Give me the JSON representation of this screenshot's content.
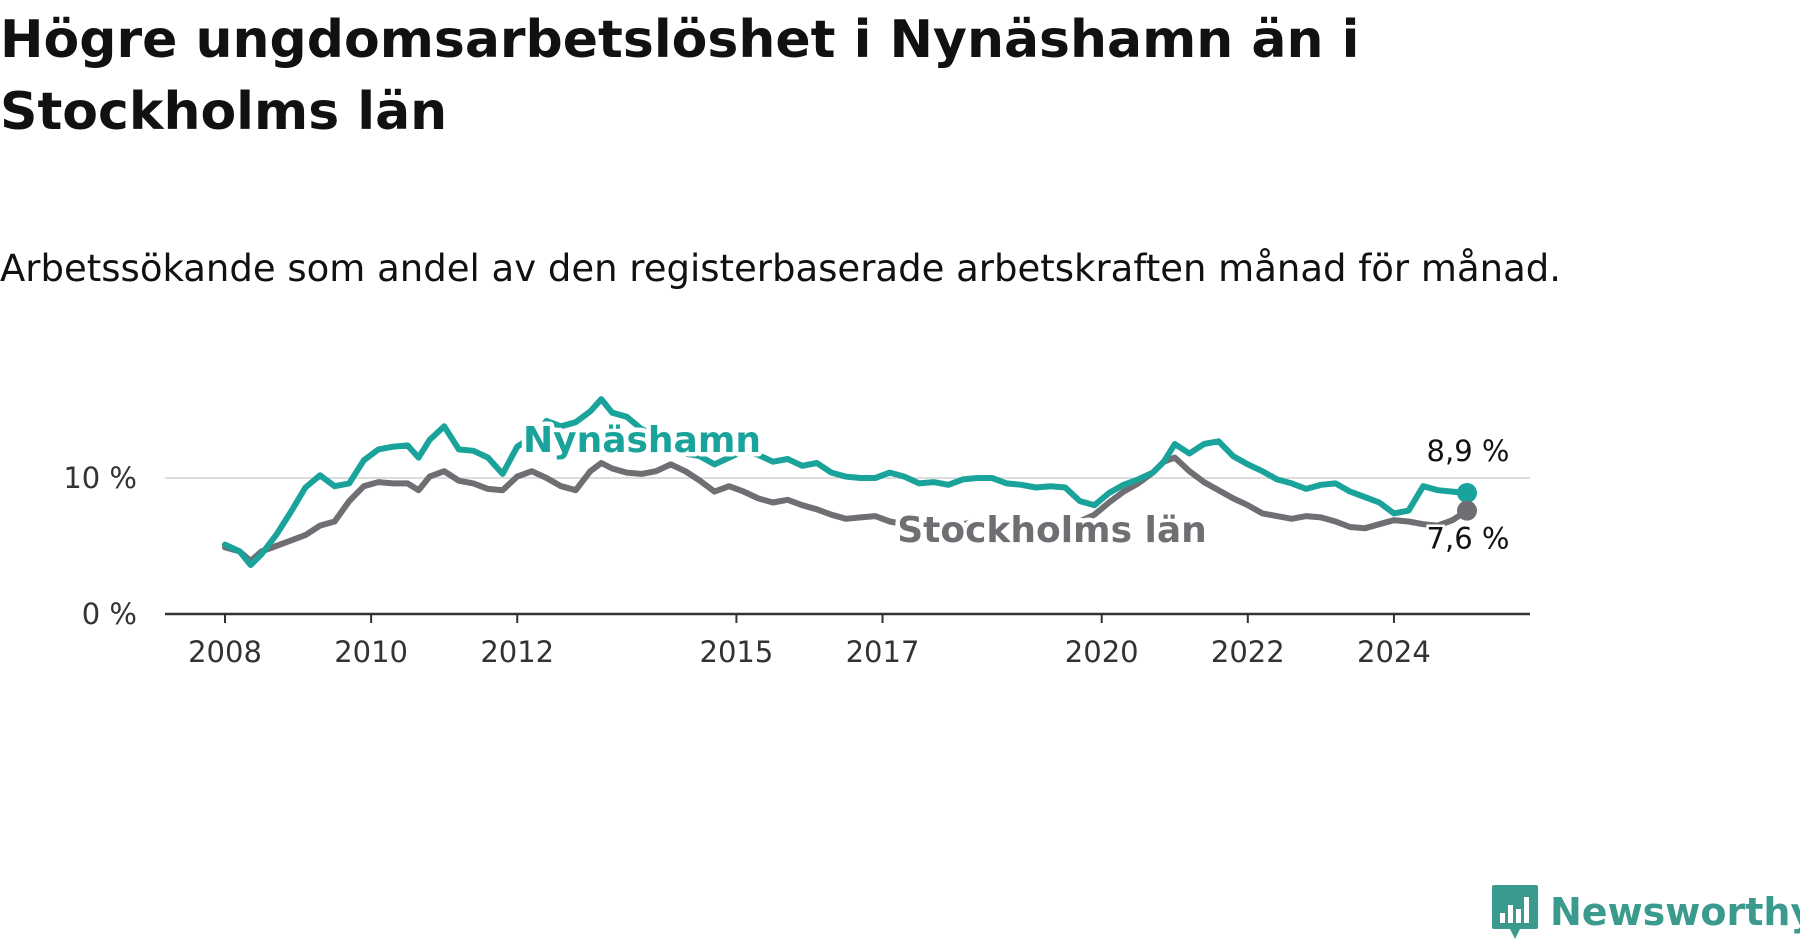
{
  "title": "Högre ungdomsarbetslöshet i Nynäshamn än i Stockholms län",
  "subtitle": "Arbetssökande som andel av den registerbaserade arbetskraften månad för månad.",
  "logo": {
    "text": "Newsworthy",
    "icon": "newsworthy-logo-icon",
    "color": "#3a9a8e"
  },
  "chart_data": {
    "type": "line",
    "title": "Högre ungdomsarbetslöshet i Nynäshamn än i Stockholms län",
    "xlabel": "",
    "ylabel": "",
    "xlim": [
      2008.0,
      2025.0
    ],
    "ylim": [
      0,
      18
    ],
    "grid": true,
    "x_ticks": [
      {
        "value": 2008,
        "label": "2008"
      },
      {
        "value": 2010,
        "label": "2010"
      },
      {
        "value": 2012,
        "label": "2012"
      },
      {
        "value": 2015,
        "label": "2015"
      },
      {
        "value": 2017,
        "label": "2017"
      },
      {
        "value": 2020,
        "label": "2020"
      },
      {
        "value": 2022,
        "label": "2022"
      },
      {
        "value": 2024,
        "label": "2024"
      }
    ],
    "y_ticks": [
      {
        "value": 0,
        "label": "0 %"
      },
      {
        "value": 10,
        "label": "10 %"
      }
    ],
    "series": [
      {
        "name": "Nynäshamn",
        "color": "#1aa39a",
        "end_label": "8,9 %",
        "points": [
          [
            2008.0,
            5.1
          ],
          [
            2008.2,
            4.6
          ],
          [
            2008.35,
            3.6
          ],
          [
            2008.5,
            4.4
          ],
          [
            2008.7,
            5.8
          ],
          [
            2008.9,
            7.5
          ],
          [
            2009.1,
            9.3
          ],
          [
            2009.3,
            10.2
          ],
          [
            2009.5,
            9.4
          ],
          [
            2009.7,
            9.6
          ],
          [
            2009.9,
            11.3
          ],
          [
            2010.1,
            12.1
          ],
          [
            2010.3,
            12.3
          ],
          [
            2010.5,
            12.4
          ],
          [
            2010.65,
            11.5
          ],
          [
            2010.8,
            12.8
          ],
          [
            2011.0,
            13.8
          ],
          [
            2011.2,
            12.1
          ],
          [
            2011.4,
            12.0
          ],
          [
            2011.6,
            11.5
          ],
          [
            2011.8,
            10.3
          ],
          [
            2012.0,
            12.3
          ],
          [
            2012.2,
            13.0
          ],
          [
            2012.4,
            14.2
          ],
          [
            2012.6,
            13.8
          ],
          [
            2012.8,
            14.1
          ],
          [
            2013.0,
            14.9
          ],
          [
            2013.15,
            15.8
          ],
          [
            2013.3,
            14.8
          ],
          [
            2013.5,
            14.5
          ],
          [
            2013.7,
            13.6
          ],
          [
            2013.9,
            13.1
          ],
          [
            2014.1,
            12.6
          ],
          [
            2014.3,
            11.8
          ],
          [
            2014.5,
            11.6
          ],
          [
            2014.7,
            11.0
          ],
          [
            2014.9,
            11.5
          ],
          [
            2015.1,
            12.0
          ],
          [
            2015.3,
            11.7
          ],
          [
            2015.5,
            11.2
          ],
          [
            2015.7,
            11.4
          ],
          [
            2015.9,
            10.9
          ],
          [
            2016.1,
            11.1
          ],
          [
            2016.3,
            10.4
          ],
          [
            2016.5,
            10.1
          ],
          [
            2016.7,
            10.0
          ],
          [
            2016.9,
            10.0
          ],
          [
            2017.1,
            10.4
          ],
          [
            2017.3,
            10.1
          ],
          [
            2017.5,
            9.6
          ],
          [
            2017.7,
            9.7
          ],
          [
            2017.9,
            9.5
          ],
          [
            2018.1,
            9.9
          ],
          [
            2018.3,
            10.0
          ],
          [
            2018.5,
            10.0
          ],
          [
            2018.7,
            9.6
          ],
          [
            2018.9,
            9.5
          ],
          [
            2019.1,
            9.3
          ],
          [
            2019.3,
            9.4
          ],
          [
            2019.5,
            9.3
          ],
          [
            2019.7,
            8.3
          ],
          [
            2019.9,
            8.0
          ],
          [
            2020.1,
            8.9
          ],
          [
            2020.3,
            9.5
          ],
          [
            2020.5,
            9.9
          ],
          [
            2020.7,
            10.4
          ],
          [
            2020.85,
            11.2
          ],
          [
            2021.0,
            12.5
          ],
          [
            2021.2,
            11.8
          ],
          [
            2021.4,
            12.5
          ],
          [
            2021.6,
            12.7
          ],
          [
            2021.8,
            11.6
          ],
          [
            2022.0,
            11.0
          ],
          [
            2022.2,
            10.5
          ],
          [
            2022.4,
            9.9
          ],
          [
            2022.6,
            9.6
          ],
          [
            2022.8,
            9.2
          ],
          [
            2023.0,
            9.5
          ],
          [
            2023.2,
            9.6
          ],
          [
            2023.4,
            9.0
          ],
          [
            2023.6,
            8.6
          ],
          [
            2023.8,
            8.2
          ],
          [
            2024.0,
            7.4
          ],
          [
            2024.2,
            7.6
          ],
          [
            2024.4,
            9.4
          ],
          [
            2024.6,
            9.1
          ],
          [
            2024.8,
            9.0
          ],
          [
            2025.0,
            8.9
          ]
        ]
      },
      {
        "name": "Stockholms län",
        "color": "#6e6e73",
        "end_label": "7,6 %",
        "points": [
          [
            2008.0,
            4.9
          ],
          [
            2008.2,
            4.6
          ],
          [
            2008.35,
            3.9
          ],
          [
            2008.5,
            4.6
          ],
          [
            2008.7,
            5.0
          ],
          [
            2008.9,
            5.4
          ],
          [
            2009.1,
            5.8
          ],
          [
            2009.3,
            6.5
          ],
          [
            2009.5,
            6.8
          ],
          [
            2009.7,
            8.3
          ],
          [
            2009.9,
            9.4
          ],
          [
            2010.1,
            9.7
          ],
          [
            2010.3,
            9.6
          ],
          [
            2010.5,
            9.6
          ],
          [
            2010.65,
            9.1
          ],
          [
            2010.8,
            10.1
          ],
          [
            2011.0,
            10.5
          ],
          [
            2011.2,
            9.8
          ],
          [
            2011.4,
            9.6
          ],
          [
            2011.6,
            9.2
          ],
          [
            2011.8,
            9.1
          ],
          [
            2012.0,
            10.1
          ],
          [
            2012.2,
            10.5
          ],
          [
            2012.4,
            10.0
          ],
          [
            2012.6,
            9.4
          ],
          [
            2012.8,
            9.1
          ],
          [
            2013.0,
            10.5
          ],
          [
            2013.15,
            11.1
          ],
          [
            2013.3,
            10.7
          ],
          [
            2013.5,
            10.4
          ],
          [
            2013.7,
            10.3
          ],
          [
            2013.9,
            10.5
          ],
          [
            2014.1,
            11.0
          ],
          [
            2014.3,
            10.5
          ],
          [
            2014.5,
            9.8
          ],
          [
            2014.7,
            9.0
          ],
          [
            2014.9,
            9.4
          ],
          [
            2015.1,
            9.0
          ],
          [
            2015.3,
            8.5
          ],
          [
            2015.5,
            8.2
          ],
          [
            2015.7,
            8.4
          ],
          [
            2015.9,
            8.0
          ],
          [
            2016.1,
            7.7
          ],
          [
            2016.3,
            7.3
          ],
          [
            2016.5,
            7.0
          ],
          [
            2016.7,
            7.1
          ],
          [
            2016.9,
            7.2
          ],
          [
            2017.1,
            6.8
          ],
          [
            2017.3,
            6.6
          ],
          [
            2017.5,
            6.4
          ],
          [
            2017.7,
            6.5
          ],
          [
            2017.9,
            6.5
          ],
          [
            2018.1,
            6.6
          ],
          [
            2018.3,
            6.8
          ],
          [
            2018.5,
            6.8
          ],
          [
            2018.7,
            6.5
          ],
          [
            2018.9,
            6.4
          ],
          [
            2019.1,
            6.5
          ],
          [
            2019.3,
            6.6
          ],
          [
            2019.5,
            6.6
          ],
          [
            2019.7,
            6.8
          ],
          [
            2019.9,
            7.3
          ],
          [
            2020.1,
            8.2
          ],
          [
            2020.3,
            9.0
          ],
          [
            2020.5,
            9.6
          ],
          [
            2020.7,
            10.4
          ],
          [
            2020.85,
            11.2
          ],
          [
            2021.0,
            11.5
          ],
          [
            2021.2,
            10.5
          ],
          [
            2021.4,
            9.7
          ],
          [
            2021.6,
            9.1
          ],
          [
            2021.8,
            8.5
          ],
          [
            2022.0,
            8.0
          ],
          [
            2022.2,
            7.4
          ],
          [
            2022.4,
            7.2
          ],
          [
            2022.6,
            7.0
          ],
          [
            2022.8,
            7.2
          ],
          [
            2023.0,
            7.1
          ],
          [
            2023.2,
            6.8
          ],
          [
            2023.4,
            6.4
          ],
          [
            2023.6,
            6.3
          ],
          [
            2023.8,
            6.6
          ],
          [
            2024.0,
            6.9
          ],
          [
            2024.2,
            6.8
          ],
          [
            2024.4,
            6.6
          ],
          [
            2024.6,
            6.5
          ],
          [
            2024.8,
            6.9
          ],
          [
            2025.0,
            7.6
          ]
        ]
      }
    ]
  }
}
